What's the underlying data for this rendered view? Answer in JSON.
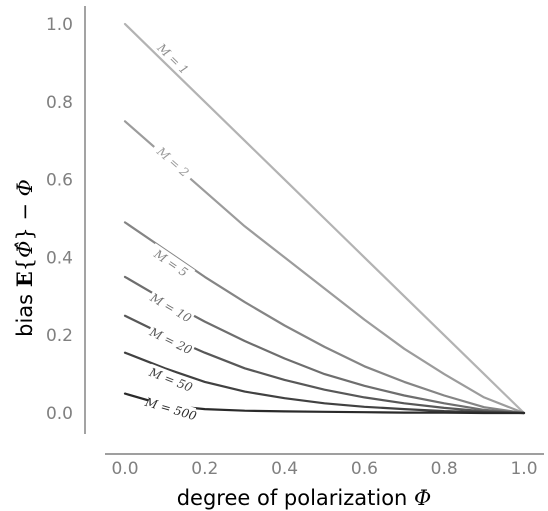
{
  "chart_data": {
    "type": "line",
    "xlabel": "degree of polarization Φ",
    "ylabel": "bias E{Φ̂} − Φ",
    "xlim": [
      0.0,
      1.0
    ],
    "ylim": [
      0.0,
      1.0
    ],
    "xticks": [
      "0.0",
      "0.2",
      "0.4",
      "0.6",
      "0.8",
      "1.0"
    ],
    "yticks": [
      "0.0",
      "0.2",
      "0.4",
      "0.6",
      "0.8",
      "1.0"
    ],
    "grid": false,
    "x": [
      0.0,
      0.1,
      0.2,
      0.3,
      0.4,
      0.5,
      0.6,
      0.7,
      0.8,
      0.9,
      1.0
    ],
    "series": [
      {
        "name": "M = 1",
        "color": "#b3b3b3",
        "values": [
          1.0,
          0.9,
          0.8,
          0.7,
          0.6,
          0.5,
          0.4,
          0.3,
          0.2,
          0.1,
          0.0
        ]
      },
      {
        "name": "M = 2",
        "color": "#9c9c9c",
        "values": [
          0.75,
          0.66,
          0.57,
          0.48,
          0.4,
          0.32,
          0.24,
          0.165,
          0.1,
          0.04,
          0.0
        ]
      },
      {
        "name": "M = 5",
        "color": "#858585",
        "values": [
          0.49,
          0.42,
          0.35,
          0.285,
          0.225,
          0.17,
          0.12,
          0.08,
          0.045,
          0.015,
          0.0
        ]
      },
      {
        "name": "M = 10",
        "color": "#6e6e6e",
        "values": [
          0.35,
          0.29,
          0.235,
          0.185,
          0.14,
          0.1,
          0.07,
          0.045,
          0.025,
          0.008,
          0.0
        ]
      },
      {
        "name": "M = 20",
        "color": "#585858",
        "values": [
          0.25,
          0.2,
          0.155,
          0.115,
          0.085,
          0.06,
          0.04,
          0.025,
          0.013,
          0.004,
          0.0
        ]
      },
      {
        "name": "M = 50",
        "color": "#414141",
        "values": [
          0.155,
          0.115,
          0.08,
          0.055,
          0.038,
          0.025,
          0.016,
          0.01,
          0.005,
          0.002,
          0.0
        ]
      },
      {
        "name": "M = 500",
        "color": "#2a2a2a",
        "values": [
          0.05,
          0.02,
          0.01,
          0.006,
          0.004,
          0.003,
          0.002,
          0.001,
          0.001,
          0.0,
          0.0
        ]
      }
    ],
    "curve_labels": [
      {
        "text": "M = 1",
        "x": 0.12,
        "y": 0.91
      },
      {
        "text": "M = 2",
        "x": 0.12,
        "y": 0.645
      },
      {
        "text": "M = 5",
        "x": 0.115,
        "y": 0.385
      },
      {
        "text": "M = 10",
        "x": 0.115,
        "y": 0.27
      },
      {
        "text": "M = 20",
        "x": 0.115,
        "y": 0.185
      },
      {
        "text": "M = 50",
        "x": 0.115,
        "y": 0.085
      },
      {
        "text": "M = 500",
        "x": 0.115,
        "y": 0.01
      }
    ]
  }
}
